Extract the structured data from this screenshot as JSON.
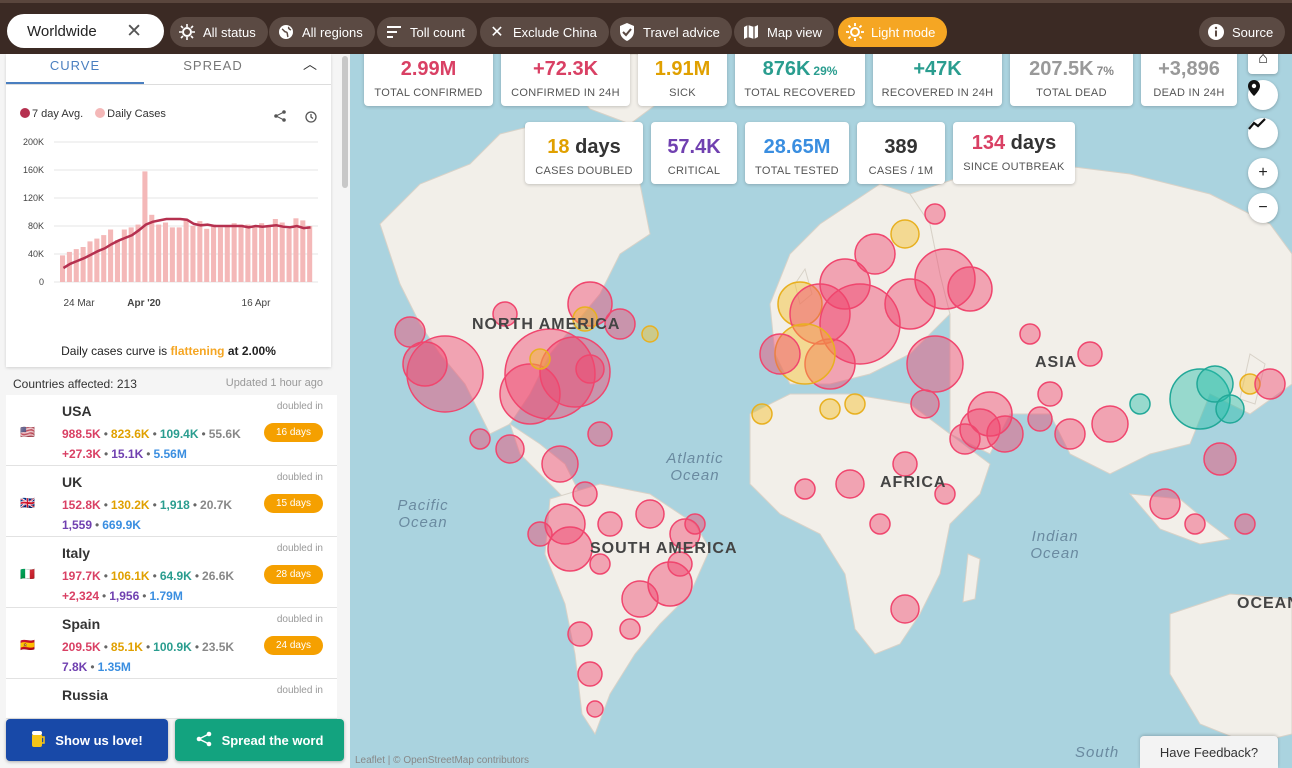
{
  "topbar": {
    "search_value": "Worldwide",
    "chips": [
      {
        "label": "All status",
        "icon": "virus-icon"
      },
      {
        "label": "All regions",
        "icon": "globe-icon"
      },
      {
        "label": "Toll count",
        "icon": "sort-icon"
      },
      {
        "label": "Exclude China",
        "icon": "close-icon"
      },
      {
        "label": "Travel advice",
        "icon": "shield-check-icon"
      },
      {
        "label": "Map view",
        "icon": "map-icon"
      },
      {
        "label": "Light mode",
        "icon": "sun-icon"
      },
      {
        "label": "Source",
        "icon": "info-icon"
      }
    ]
  },
  "stats_row1": [
    {
      "value": "2.99M",
      "suffix": "",
      "label": "TOTAL CONFIRMED",
      "color": "#d94064"
    },
    {
      "value": "+72.3K",
      "suffix": "",
      "label": "CONFIRMED IN 24H",
      "color": "#d94064"
    },
    {
      "value": "1.91M",
      "suffix": "",
      "label": "SICK",
      "color": "#e0a000"
    },
    {
      "value": "876K",
      "suffix": "29%",
      "label": "TOTAL RECOVERED",
      "color": "#2a9d8f"
    },
    {
      "value": "+47K",
      "suffix": "",
      "label": "RECOVERED IN 24H",
      "color": "#2a9d8f"
    },
    {
      "value": "207.5K",
      "suffix": "7%",
      "label": "TOTAL DEAD",
      "color": "#999999"
    },
    {
      "value": "+3,896",
      "suffix": "",
      "label": "DEAD IN 24H",
      "color": "#999999"
    }
  ],
  "stats_row2": [
    {
      "value": "18",
      "unit": "days",
      "label": "CASES DOUBLED",
      "color": "#e0a000"
    },
    {
      "value": "57.4K",
      "unit": "",
      "label": "CRITICAL",
      "color": "#7040b0"
    },
    {
      "value": "28.65M",
      "unit": "",
      "label": "TOTAL TESTED",
      "color": "#3a8ee0"
    },
    {
      "value": "389",
      "unit": "",
      "label": "CASES / 1M",
      "color": "#333333"
    },
    {
      "value": "134",
      "unit": "days",
      "label": "SINCE OUTBREAK",
      "color": "#d94064"
    }
  ],
  "map": {
    "labels": {
      "north_america": "NORTH AMERICA",
      "asia": "ASIA",
      "africa": "AFRICA",
      "south_america": "SOUTH AMERICA",
      "atlantic": "Atlantic Ocean",
      "pacific": "Pacific Ocean",
      "indian": "Indian Ocean",
      "ocean_right": "OCEAN",
      "south": "South"
    },
    "attribution": "Leaflet | © OpenStreetMap contributors",
    "feedback": "Have Feedback?",
    "controls": [
      "home-icon",
      "location-pin-icon",
      "trend-icon",
      "zoom-in-icon",
      "zoom-out-icon"
    ]
  },
  "sidebar": {
    "tabs": [
      "CURVE",
      "SPREAD"
    ],
    "legend": [
      "7 day Avg.",
      "Daily Cases"
    ],
    "flat_text": {
      "pre": "Daily cases curve is ",
      "status": "flattening",
      "post": " at 2.00%"
    },
    "affected": "Countries affected: 213",
    "updated": "Updated 1 hour ago",
    "countries": [
      {
        "name": "USA",
        "flag": "🇺🇸",
        "confirmed": "988.5K",
        "sick": "823.6K",
        "recovered": "109.4K",
        "dead": "55.6K",
        "line2": [
          {
            "v": "+27.3K",
            "c": "conf"
          },
          {
            "v": "15.1K",
            "c": "crit"
          },
          {
            "v": "5.56M",
            "c": "test"
          }
        ],
        "doubled_label": "doubled in",
        "doubled": "16 days"
      },
      {
        "name": "UK",
        "flag": "🇬🇧",
        "confirmed": "152.8K",
        "sick": "130.2K",
        "recovered": "1,918",
        "dead": "20.7K",
        "line2": [
          {
            "v": "1,559",
            "c": "crit"
          },
          {
            "v": "669.9K",
            "c": "test"
          }
        ],
        "doubled_label": "doubled in",
        "doubled": "15 days"
      },
      {
        "name": "Italy",
        "flag": "🇮🇹",
        "confirmed": "197.7K",
        "sick": "106.1K",
        "recovered": "64.9K",
        "dead": "26.6K",
        "line2": [
          {
            "v": "+2,324",
            "c": "conf"
          },
          {
            "v": "1,956",
            "c": "crit"
          },
          {
            "v": "1.79M",
            "c": "test"
          }
        ],
        "doubled_label": "doubled in",
        "doubled": "28 days"
      },
      {
        "name": "Spain",
        "flag": "🇪🇸",
        "confirmed": "209.5K",
        "sick": "85.1K",
        "recovered": "100.9K",
        "dead": "23.5K",
        "line2": [
          {
            "v": "7.8K",
            "c": "crit"
          },
          {
            "v": "1.35M",
            "c": "test"
          }
        ],
        "doubled_label": "doubled in",
        "doubled": "24 days"
      },
      {
        "name": "Russia",
        "flag": "",
        "confirmed": "",
        "sick": "",
        "recovered": "",
        "dead": "",
        "line2": [],
        "doubled_label": "doubled in",
        "doubled": ""
      }
    ],
    "buttons": {
      "love": "Show us love!",
      "spread": "Spread the word"
    }
  },
  "chart_data": {
    "type": "bar",
    "title": "",
    "xlabel": "",
    "ylabel": "",
    "ylim": [
      0,
      200000
    ],
    "yticks": [
      "0",
      "40K",
      "80K",
      "120K",
      "160K",
      "200K"
    ],
    "xticks": [
      "24 Mar",
      "Apr '20",
      "16 Apr"
    ],
    "series": [
      {
        "name": "Daily Cases",
        "type": "bar",
        "color": "#f4b8b8",
        "values": [
          38000,
          43000,
          47000,
          50000,
          58000,
          62000,
          67000,
          75000,
          60000,
          75000,
          78000,
          82000,
          158000,
          96000,
          82000,
          85000,
          78000,
          78000,
          88000,
          80000,
          87000,
          76000,
          82000,
          78000,
          80000,
          84000,
          82000,
          82000,
          78000,
          84000,
          80000,
          90000,
          85000,
          76000,
          91000,
          88000,
          80000
        ]
      },
      {
        "name": "7 day Avg.",
        "type": "line",
        "color": "#b5304f",
        "values": [
          20000,
          26000,
          30000,
          34000,
          39000,
          44000,
          48000,
          54000,
          59000,
          63000,
          67000,
          74000,
          82000,
          86000,
          88000,
          90000,
          90000,
          90000,
          89000,
          83000,
          81000,
          82000,
          80000,
          80000,
          80000,
          80000,
          80000,
          78000,
          80000,
          79000,
          80000,
          81000,
          79000,
          78000,
          80000,
          77000,
          78000
        ]
      }
    ]
  }
}
